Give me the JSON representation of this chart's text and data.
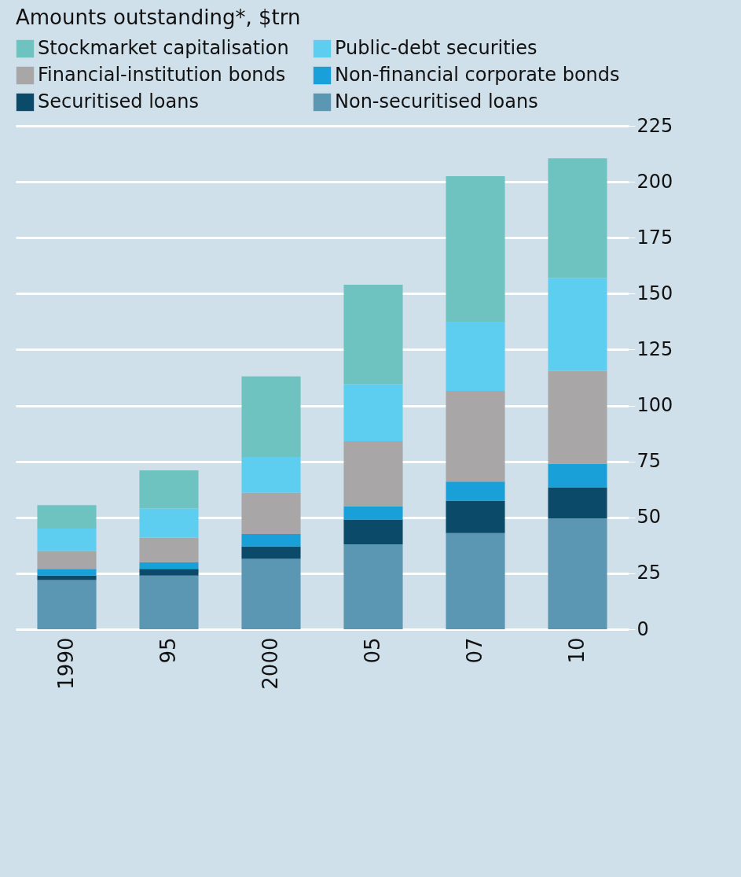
{
  "chart_data": {
    "type": "bar",
    "title": "Amounts outstanding*, $trn",
    "stacked": true,
    "categories": [
      "1990",
      "95",
      "2000",
      "05",
      "07",
      "10"
    ],
    "series": [
      {
        "name": "Non-securitised loans",
        "color": "#5b97b3",
        "values": [
          22,
          24,
          31.5,
          38,
          43,
          49.5
        ]
      },
      {
        "name": "Securitised loans",
        "color": "#0b4a68",
        "values": [
          2,
          3,
          5.5,
          11,
          14.5,
          14
        ]
      },
      {
        "name": "Non-financial corporate bonds",
        "color": "#1aa0d8",
        "values": [
          3,
          3,
          5.5,
          6,
          8.5,
          10.5
        ]
      },
      {
        "name": "Financial-institution bonds",
        "color": "#a9a6a8",
        "values": [
          8,
          11,
          18.5,
          29,
          40.5,
          41.5
        ]
      },
      {
        "name": "Public-debt securities",
        "color": "#5dcdf0",
        "values": [
          10,
          13,
          16,
          25.5,
          31,
          41.5
        ]
      },
      {
        "name": "Stockmarket capitalisation",
        "color": "#6ec3c0",
        "values": [
          10.5,
          17,
          36,
          44.5,
          65,
          53.5
        ]
      }
    ],
    "ylim": [
      0,
      225
    ],
    "yticks": [
      0,
      25,
      50,
      75,
      100,
      125,
      150,
      175,
      200,
      225
    ],
    "grid": "y",
    "legend": "top"
  }
}
